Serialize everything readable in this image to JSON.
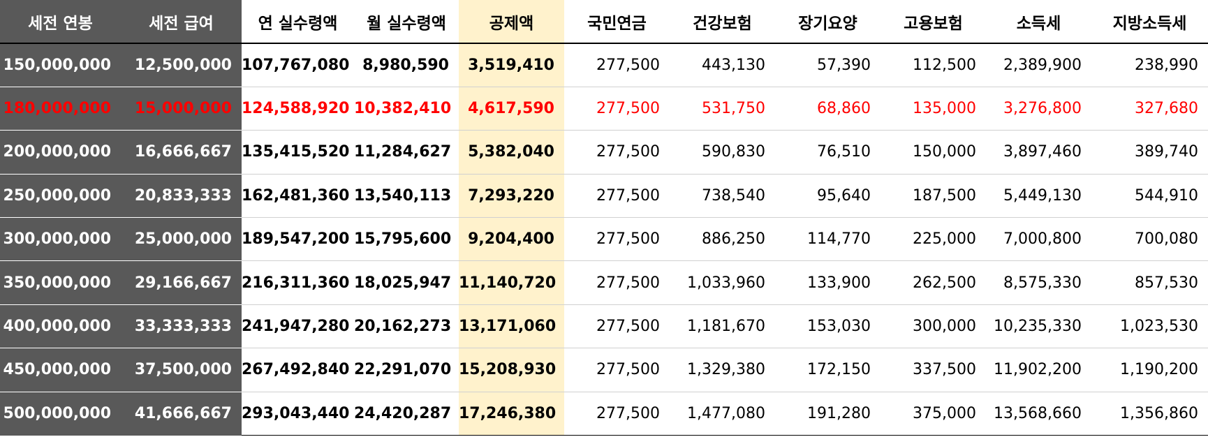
{
  "table": {
    "headers": [
      "세전 연봉",
      "세전 급여",
      "연 실수령액",
      "월 실수령액",
      "공제액",
      "국민연금",
      "건강보험",
      "장기요양",
      "고용보험",
      "소득세",
      "지방소득세"
    ],
    "rows": [
      [
        "150,000,000",
        "12,500,000",
        "107,767,080",
        "8,980,590",
        "3,519,410",
        "277,500",
        "443,130",
        "57,390",
        "112,500",
        "2,389,900",
        "238,990"
      ],
      [
        "180,000,000",
        "15,000,000",
        "124,588,920",
        "10,382,410",
        "4,617,590",
        "277,500",
        "531,750",
        "68,860",
        "135,000",
        "3,276,800",
        "327,680"
      ],
      [
        "200,000,000",
        "16,666,667",
        "135,415,520",
        "11,284,627",
        "5,382,040",
        "277,500",
        "590,830",
        "76,510",
        "150,000",
        "3,897,460",
        "389,740"
      ],
      [
        "250,000,000",
        "20,833,333",
        "162,481,360",
        "13,540,113",
        "7,293,220",
        "277,500",
        "738,540",
        "95,640",
        "187,500",
        "5,449,130",
        "544,910"
      ],
      [
        "300,000,000",
        "25,000,000",
        "189,547,200",
        "15,795,600",
        "9,204,400",
        "277,500",
        "886,250",
        "114,770",
        "225,000",
        "7,000,800",
        "700,080"
      ],
      [
        "350,000,000",
        "29,166,667",
        "216,311,360",
        "18,025,947",
        "11,140,720",
        "277,500",
        "1,033,960",
        "133,900",
        "262,500",
        "8,575,330",
        "857,530"
      ],
      [
        "400,000,000",
        "33,333,333",
        "241,947,280",
        "20,162,273",
        "13,171,060",
        "277,500",
        "1,181,670",
        "153,030",
        "300,000",
        "10,235,330",
        "1,023,530"
      ],
      [
        "450,000,000",
        "37,500,000",
        "267,492,840",
        "22,291,070",
        "15,208,930",
        "277,500",
        "1,329,380",
        "172,150",
        "337,500",
        "11,902,200",
        "1,190,200"
      ],
      [
        "500,000,000",
        "41,666,667",
        "293,043,440",
        "24,420,287",
        "17,246,380",
        "277,500",
        "1,477,080",
        "191,280",
        "375,000",
        "13,568,660",
        "1,356,860"
      ]
    ],
    "highlighted_row_index": 1,
    "colors": {
      "dark_column_bg": "#595959",
      "dark_column_text": "#ffffff",
      "deduction_column_bg": "#fff2cc",
      "highlight_text": "#ff0000"
    }
  }
}
